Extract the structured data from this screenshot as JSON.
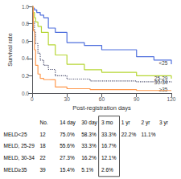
{
  "chart_data": {
    "type": "step",
    "xlabel": "Post-registration days",
    "ylabel": "Survival rate",
    "xlim": [
      0,
      120
    ],
    "ylim": [
      0.0,
      1.0
    ],
    "xticks": [
      0,
      30,
      60,
      90,
      120
    ],
    "yticks": [
      {
        "value": 0.0,
        "label": "0.0"
      },
      0.2,
      0.4,
      0.6,
      0.8,
      {
        "value": 1.0,
        "label": "1.0"
      }
    ],
    "grid": false,
    "series": [
      {
        "name": "<25",
        "line_style": "solid",
        "x": [
          0,
          1,
          2,
          4,
          7,
          10,
          14,
          20,
          30,
          45,
          60,
          90,
          105,
          120
        ],
        "values": [
          1.0,
          0.98,
          0.96,
          0.93,
          0.9,
          0.87,
          0.75,
          0.7,
          0.583,
          0.55,
          0.5,
          0.42,
          0.38,
          0.333
        ]
      },
      {
        "name": "25-29",
        "line_style": "solid",
        "x": [
          0,
          1,
          2,
          3,
          5,
          8,
          14,
          20,
          30,
          45,
          60,
          90,
          120
        ],
        "values": [
          1.0,
          0.93,
          0.87,
          0.82,
          0.77,
          0.7,
          0.556,
          0.44,
          0.333,
          0.27,
          0.24,
          0.2,
          0.167
        ]
      },
      {
        "name": "30-34",
        "line_style": "dotted",
        "x": [
          0,
          1,
          2,
          3,
          5,
          7,
          10,
          14,
          20,
          30,
          50,
          90,
          120
        ],
        "values": [
          1.0,
          0.82,
          0.7,
          0.57,
          0.46,
          0.38,
          0.32,
          0.273,
          0.2,
          0.162,
          0.14,
          0.13,
          0.121
        ]
      },
      {
        "name": "≥35",
        "line_style": "solid",
        "x": [
          0,
          1,
          2,
          3,
          5,
          7,
          10,
          14,
          20,
          30,
          50,
          90,
          120
        ],
        "values": [
          1.0,
          0.72,
          0.5,
          0.32,
          0.22,
          0.17,
          0.155,
          0.154,
          0.07,
          0.051,
          0.04,
          0.03,
          0.026
        ]
      }
    ],
    "annotations": [
      {
        "text": "<25",
        "x": 121,
        "y": 0.345
      },
      {
        "text": "25-29",
        "x": 121,
        "y": 0.175
      },
      {
        "text": "30-34",
        "x": 121,
        "y": 0.126
      },
      {
        "text": "≥35",
        "x": 121,
        "y": 0.038
      }
    ],
    "table": {
      "headers": [
        null,
        "No.",
        "14 day",
        "30 day",
        "3 mo",
        "1 yr",
        "2 yr",
        "3 yr"
      ],
      "rows": [
        [
          "MELD<25",
          "12",
          "75.0%",
          "58.3%",
          "33.3%",
          "22.2%",
          "11.1%",
          null
        ],
        [
          "MELD, 25-29",
          "18",
          "55.6%",
          "33.3%",
          "16.7%",
          null,
          null,
          null
        ],
        [
          "MELD, 30-34",
          "22",
          "27.3%",
          "16.2%",
          "12.1%",
          null,
          null,
          null
        ],
        [
          "MELD≥35",
          "39",
          "15.4%",
          "5.1%",
          "2.6%",
          null,
          null,
          null
        ]
      ]
    }
  }
}
